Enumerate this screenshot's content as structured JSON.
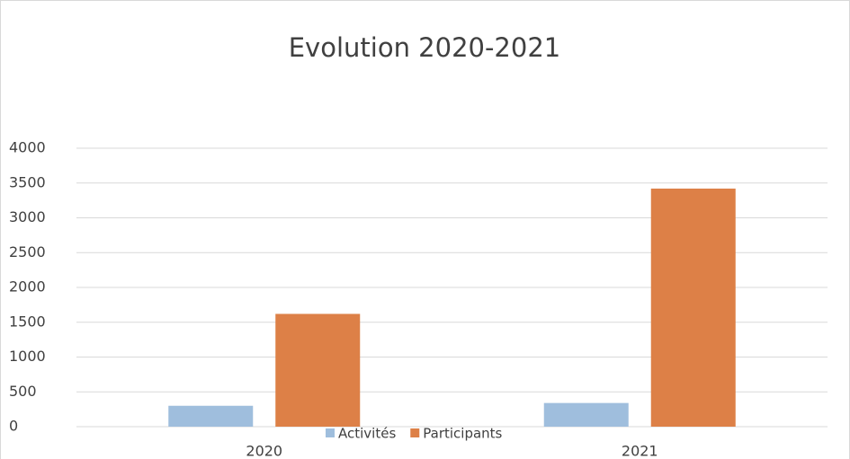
{
  "chart_data": {
    "type": "bar",
    "title": "Evolution 2020-2021",
    "categories": [
      "2020",
      "2021"
    ],
    "series": [
      {
        "name": "Activités",
        "color": "#9fbedd",
        "values": [
          300,
          340
        ]
      },
      {
        "name": "Participants",
        "color": "#dd8047",
        "values": [
          1620,
          3420
        ]
      }
    ],
    "ylim": [
      0,
      4000
    ],
    "yticks": [
      0,
      500,
      1000,
      1500,
      2000,
      2500,
      3000,
      3500,
      4000
    ],
    "grid": true,
    "legend": "bottom"
  }
}
